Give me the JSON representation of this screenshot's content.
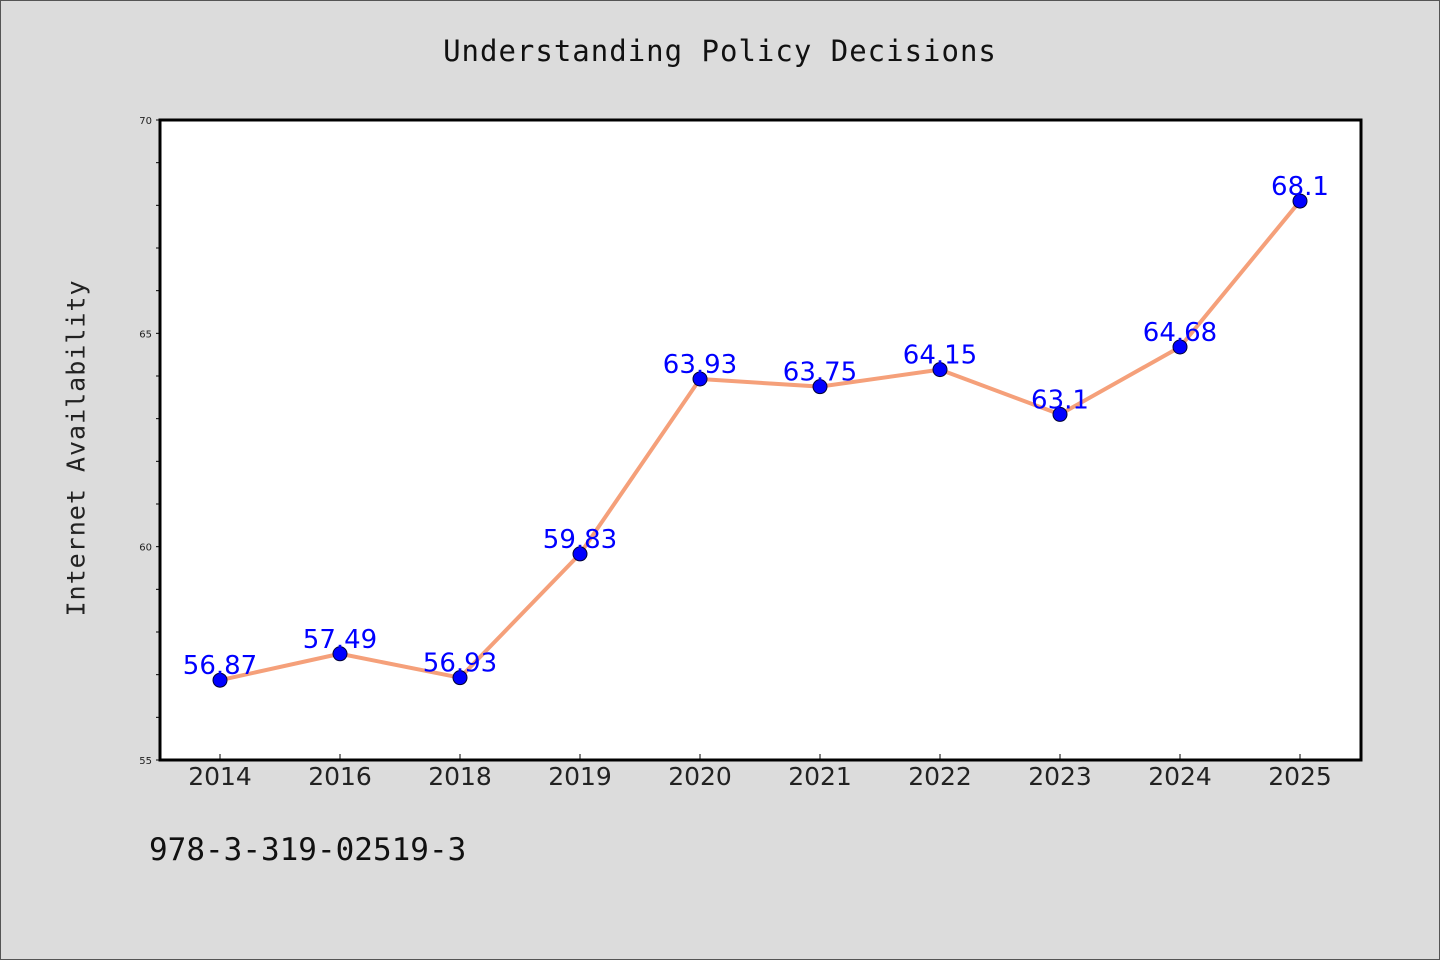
{
  "colors": {
    "background": "#dcdcdc",
    "plot_background": "#ffffff",
    "line": "#f5a07a",
    "marker": "#0000ff",
    "data_label": "#0000ff"
  },
  "footer": {
    "isbn": "978-3-319-02519-3"
  },
  "chart_data": {
    "type": "line",
    "title": "Understanding Policy Decisions",
    "xlabel": "",
    "ylabel": "Internet Availability",
    "categories": [
      "2014",
      "2016",
      "2018",
      "2019",
      "2020",
      "2021",
      "2022",
      "2023",
      "2024",
      "2025"
    ],
    "series": [
      {
        "values": [
          56.87,
          57.49,
          56.93,
          59.83,
          63.93,
          63.75,
          64.15,
          63.1,
          64.68,
          68.1
        ],
        "labels": [
          "56.87",
          "57.49",
          "56.93",
          "59.83",
          "63.93",
          "63.75",
          "64.15",
          "63.1",
          "64.68",
          "68.1"
        ]
      }
    ],
    "ylim": [
      55,
      70
    ],
    "yticks": [
      55,
      60,
      65,
      70
    ],
    "grid": false,
    "legend": "none"
  }
}
